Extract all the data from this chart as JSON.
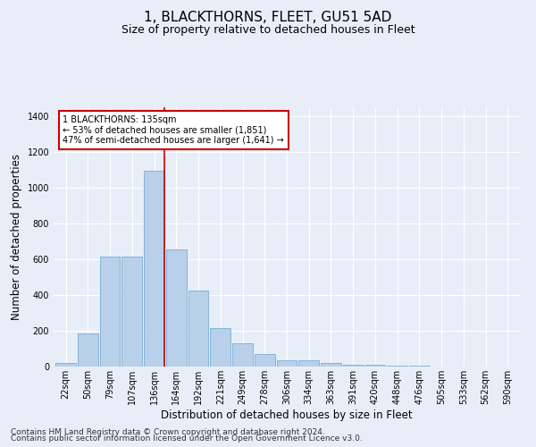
{
  "title": "1, BLACKTHORNS, FLEET, GU51 5AD",
  "subtitle": "Size of property relative to detached houses in Fleet",
  "xlabel": "Distribution of detached houses by size in Fleet",
  "ylabel": "Number of detached properties",
  "categories": [
    "22sqm",
    "50sqm",
    "79sqm",
    "107sqm",
    "136sqm",
    "164sqm",
    "192sqm",
    "221sqm",
    "249sqm",
    "278sqm",
    "306sqm",
    "334sqm",
    "363sqm",
    "391sqm",
    "420sqm",
    "448sqm",
    "476sqm",
    "505sqm",
    "533sqm",
    "562sqm",
    "590sqm"
  ],
  "values": [
    20,
    185,
    615,
    615,
    1095,
    655,
    425,
    215,
    130,
    70,
    35,
    35,
    18,
    12,
    8,
    5,
    5,
    2,
    2,
    2,
    0
  ],
  "bar_color": "#b8d0ea",
  "bar_edge_color": "#7aadd4",
  "highlight_index": 4,
  "highlight_line_color": "#cc0000",
  "annotation_text": "1 BLACKTHORNS: 135sqm\n← 53% of detached houses are smaller (1,851)\n47% of semi-detached houses are larger (1,641) →",
  "annotation_box_color": "#ffffff",
  "annotation_box_edge_color": "#cc0000",
  "ylim": [
    0,
    1450
  ],
  "yticks": [
    0,
    200,
    400,
    600,
    800,
    1000,
    1200,
    1400
  ],
  "footer_line1": "Contains HM Land Registry data © Crown copyright and database right 2024.",
  "footer_line2": "Contains public sector information licensed under the Open Government Licence v3.0.",
  "bg_color": "#e8eef8",
  "plot_bg_color": "#e8eef8",
  "grid_color": "#ffffff",
  "title_fontsize": 11,
  "subtitle_fontsize": 9,
  "axis_label_fontsize": 8.5,
  "tick_fontsize": 7,
  "footer_fontsize": 6.5
}
